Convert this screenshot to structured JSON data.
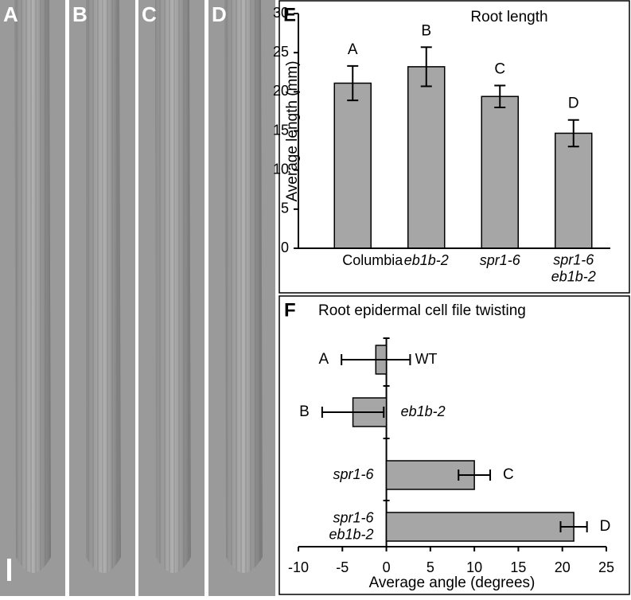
{
  "figure": {
    "image_panels": [
      "A",
      "B",
      "C",
      "D"
    ]
  },
  "chart_data": [
    {
      "type": "bar",
      "panel": "E",
      "title": "Root length",
      "y_label": "Average length (mm)",
      "categories": [
        "Columbia",
        "eb1b-2",
        "spr1-6",
        [
          "spr1-6",
          "eb1b-2"
        ]
      ],
      "values": [
        21.1,
        23.2,
        19.4,
        14.7
      ],
      "errors": [
        2.2,
        2.5,
        1.4,
        1.7
      ],
      "significance_labels": [
        "A",
        "B",
        "C",
        "D"
      ],
      "color": "#a6a6a6",
      "ylim": [
        0,
        30
      ],
      "yticks": [
        0,
        5,
        10,
        15,
        20,
        25,
        30
      ]
    },
    {
      "type": "hbar",
      "panel": "F",
      "title": "Root epidermal cell file twisting",
      "x_label": "Average angle (degrees)",
      "categories": [
        "WT",
        "eb1b-2",
        "spr1-6",
        [
          "spr1-6",
          "eb1b-2"
        ]
      ],
      "values": [
        -1.2,
        -3.8,
        10,
        21.3
      ],
      "errors": [
        3.9,
        3.5,
        1.8,
        1.5
      ],
      "significance_labels": [
        "A",
        "B",
        "C",
        "D"
      ],
      "color": "#a6a6a6",
      "xlim": [
        -10,
        25
      ],
      "xticks": [
        -10,
        -5,
        0,
        5,
        10,
        15,
        20,
        25
      ]
    }
  ]
}
